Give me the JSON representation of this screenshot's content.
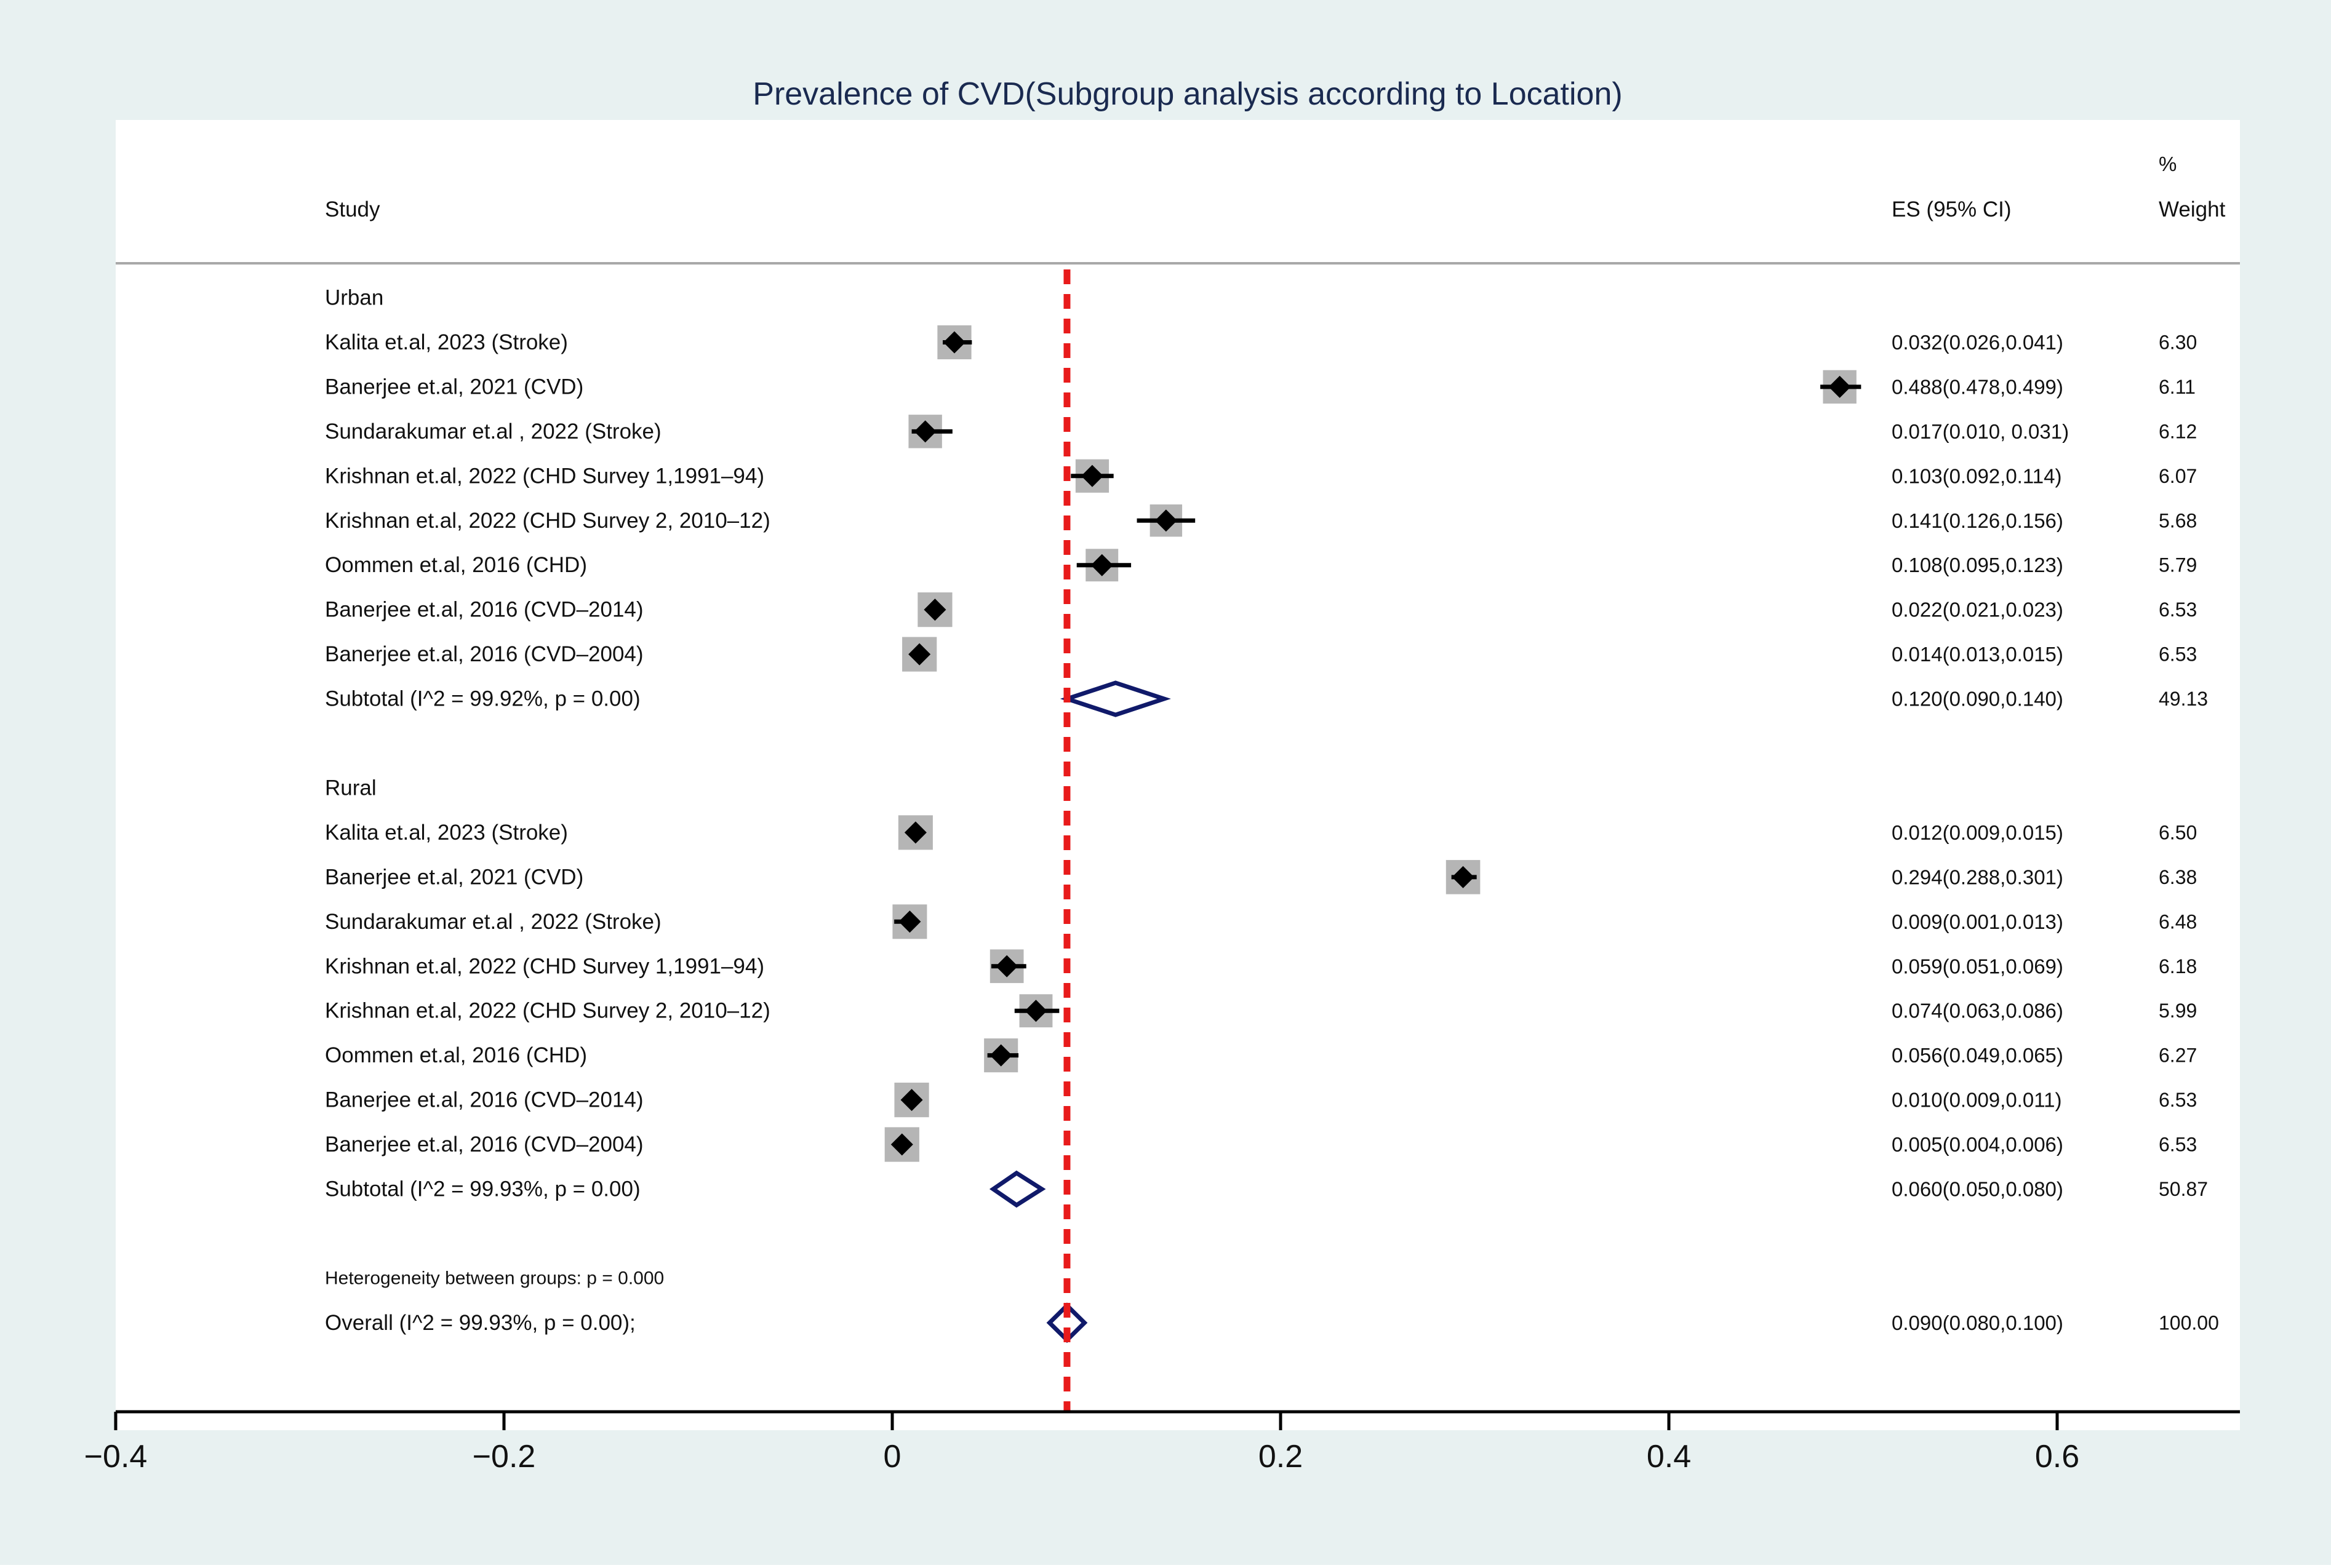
{
  "chart_data": {
    "type": "forest",
    "title": "Prevalence of CVD(Subgroup analysis according to Location)",
    "header": {
      "study": "Study",
      "es": "ES (95% CI)",
      "weight_pct": "%",
      "weight": "Weight"
    },
    "reference_line": 0.09,
    "xlim": [
      -0.4,
      0.69
    ],
    "xticks": [
      {
        "value": -0.4,
        "label": "−0.4"
      },
      {
        "value": -0.2,
        "label": "−0.2"
      },
      {
        "value": 0,
        "label": "0"
      },
      {
        "value": 0.2,
        "label": "0.2"
      },
      {
        "value": 0.4,
        "label": "0.4"
      },
      {
        "value": 0.6,
        "label": "0.6"
      }
    ],
    "rows": [
      {
        "kind": "group",
        "label": "Urban"
      },
      {
        "kind": "study",
        "label": "Kalita et.al, 2023 (Stroke)",
        "es": 0.032,
        "lo": 0.026,
        "hi": 0.041,
        "es_text": "0.032(0.026,0.041)",
        "weight": 6.3,
        "weight_text": "6.30"
      },
      {
        "kind": "study",
        "label": "Banerjee et.al, 2021 (CVD)",
        "es": 0.488,
        "lo": 0.478,
        "hi": 0.499,
        "es_text": "0.488(0.478,0.499)",
        "weight": 6.11,
        "weight_text": "6.11"
      },
      {
        "kind": "study",
        "label": "Sundarakumar et.al , 2022 (Stroke)",
        "es": 0.017,
        "lo": 0.01,
        "hi": 0.031,
        "es_text": "0.017(0.010, 0.031)",
        "weight": 6.12,
        "weight_text": "6.12"
      },
      {
        "kind": "study",
        "label": "Krishnan et.al, 2022 (CHD Survey 1,1991–94)",
        "es": 0.103,
        "lo": 0.092,
        "hi": 0.114,
        "es_text": "0.103(0.092,0.114)",
        "weight": 6.07,
        "weight_text": "6.07"
      },
      {
        "kind": "study",
        "label": "Krishnan et.al, 2022  (CHD Survey 2, 2010–12)",
        "es": 0.141,
        "lo": 0.126,
        "hi": 0.156,
        "es_text": "0.141(0.126,0.156)",
        "weight": 5.68,
        "weight_text": "5.68"
      },
      {
        "kind": "study",
        "label": "Oommen et.al, 2016 (CHD)",
        "es": 0.108,
        "lo": 0.095,
        "hi": 0.123,
        "es_text": "0.108(0.095,0.123)",
        "weight": 5.79,
        "weight_text": "5.79"
      },
      {
        "kind": "study",
        "label": "Banerjee et.al, 2016 (CVD–2014)",
        "es": 0.022,
        "lo": 0.021,
        "hi": 0.023,
        "es_text": "0.022(0.021,0.023)",
        "weight": 6.53,
        "weight_text": "6.53"
      },
      {
        "kind": "study",
        "label": "Banerjee et.al, 2016 (CVD–2004)",
        "es": 0.014,
        "lo": 0.013,
        "hi": 0.015,
        "es_text": "0.014(0.013,0.015)",
        "weight": 6.53,
        "weight_text": "6.53"
      },
      {
        "kind": "subtotal",
        "label": "Subtotal  (I^2 = 99.92%, p = 0.00)",
        "es": 0.115,
        "lo": 0.09,
        "hi": 0.14,
        "es_text": "0.120(0.090,0.140)",
        "weight": 49.13,
        "weight_text": "49.13"
      },
      {
        "kind": "blank"
      },
      {
        "kind": "group",
        "label": "Rural"
      },
      {
        "kind": "study",
        "label": "Kalita et.al, 2023 (Stroke)",
        "es": 0.012,
        "lo": 0.009,
        "hi": 0.015,
        "es_text": "0.012(0.009,0.015)",
        "weight": 6.5,
        "weight_text": "6.50"
      },
      {
        "kind": "study",
        "label": "Banerjee et.al, 2021 (CVD)",
        "es": 0.294,
        "lo": 0.288,
        "hi": 0.301,
        "es_text": "0.294(0.288,0.301)",
        "weight": 6.38,
        "weight_text": "6.38"
      },
      {
        "kind": "study",
        "label": "Sundarakumar et.al , 2022 (Stroke)",
        "es": 0.009,
        "lo": 0.001,
        "hi": 0.013,
        "es_text": "0.009(0.001,0.013)",
        "weight": 6.48,
        "weight_text": "6.48"
      },
      {
        "kind": "study",
        "label": "Krishnan et.al, 2022 (CHD Survey 1,1991–94)",
        "es": 0.059,
        "lo": 0.051,
        "hi": 0.069,
        "es_text": "0.059(0.051,0.069)",
        "weight": 6.18,
        "weight_text": "6.18"
      },
      {
        "kind": "study",
        "label": "Krishnan et.al, 2022  (CHD Survey 2, 2010–12)",
        "es": 0.074,
        "lo": 0.063,
        "hi": 0.086,
        "es_text": "0.074(0.063,0.086)",
        "weight": 5.99,
        "weight_text": "5.99"
      },
      {
        "kind": "study",
        "label": "Oommen et.al, 2016 (CHD)",
        "es": 0.056,
        "lo": 0.049,
        "hi": 0.065,
        "es_text": "0.056(0.049,0.065)",
        "weight": 6.27,
        "weight_text": "6.27"
      },
      {
        "kind": "study",
        "label": "Banerjee et.al, 2016 (CVD–2014)",
        "es": 0.01,
        "lo": 0.009,
        "hi": 0.011,
        "es_text": "0.010(0.009,0.011)",
        "weight": 6.53,
        "weight_text": "6.53"
      },
      {
        "kind": "study",
        "label": "Banerjee et.al, 2016 (CVD–2004)",
        "es": 0.005,
        "lo": 0.004,
        "hi": 0.006,
        "es_text": "0.005(0.004,0.006)",
        "weight": 6.53,
        "weight_text": "6.53"
      },
      {
        "kind": "subtotal",
        "label": "Subtotal  (I^2 = 99.93%, p = 0.00)",
        "es": 0.064,
        "lo": 0.052,
        "hi": 0.077,
        "es_text": "0.060(0.050,0.080)",
        "weight": 50.87,
        "weight_text": "50.87"
      },
      {
        "kind": "blank"
      },
      {
        "kind": "note",
        "label": "Heterogeneity between groups: p = 0.000"
      },
      {
        "kind": "overall",
        "label": "Overall  (I^2 = 99.93%, p = 0.00);",
        "es": 0.09,
        "lo": 0.081,
        "hi": 0.099,
        "es_text": "0.090(0.080,0.100)",
        "weight": 100.0,
        "weight_text": "100.00"
      }
    ]
  },
  "colors": {
    "outer_background": "#e8f1f1",
    "plot_background": "#ffffff",
    "title": "#1a2a50",
    "text": "#111111",
    "weight_box": "#b5b5b5",
    "point": "#000000",
    "diamond": "#101a6a",
    "reference_line": "#e81b1b",
    "axis": "#000000",
    "header_rule": "#a8a8a8"
  }
}
